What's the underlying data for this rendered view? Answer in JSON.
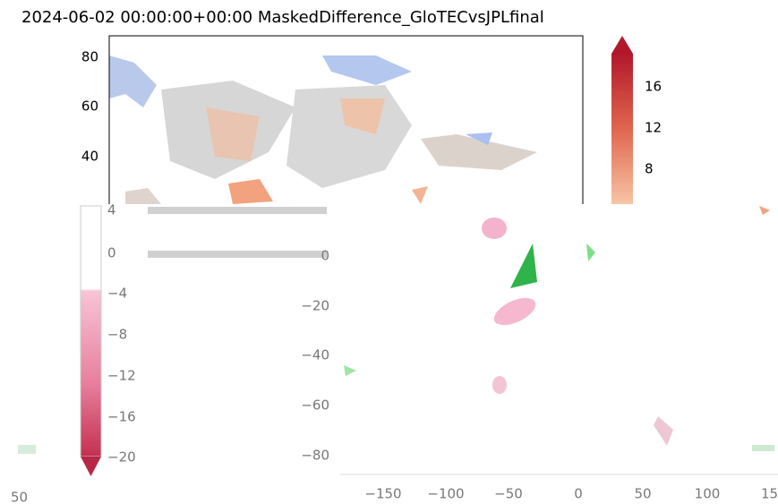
{
  "title": "2024-06-02 00:00:00+00:00 MaskedDifference_GloTECvsJPLfinal",
  "top_panel": {
    "yticks": [
      "80",
      "60",
      "40"
    ],
    "colorbar_ticks": [
      "16",
      "12",
      "8"
    ]
  },
  "bottom_panel": {
    "colorbar_ticks": [
      "4",
      "0",
      "−4",
      "−8",
      "−12",
      "−16",
      "−20"
    ],
    "yticks": [
      "0",
      "−20",
      "−40",
      "−60",
      "−80"
    ],
    "xticks": [
      "−150",
      "−100",
      "−50",
      "0",
      "50",
      "100",
      "15"
    ],
    "left_xtick": "50"
  }
}
